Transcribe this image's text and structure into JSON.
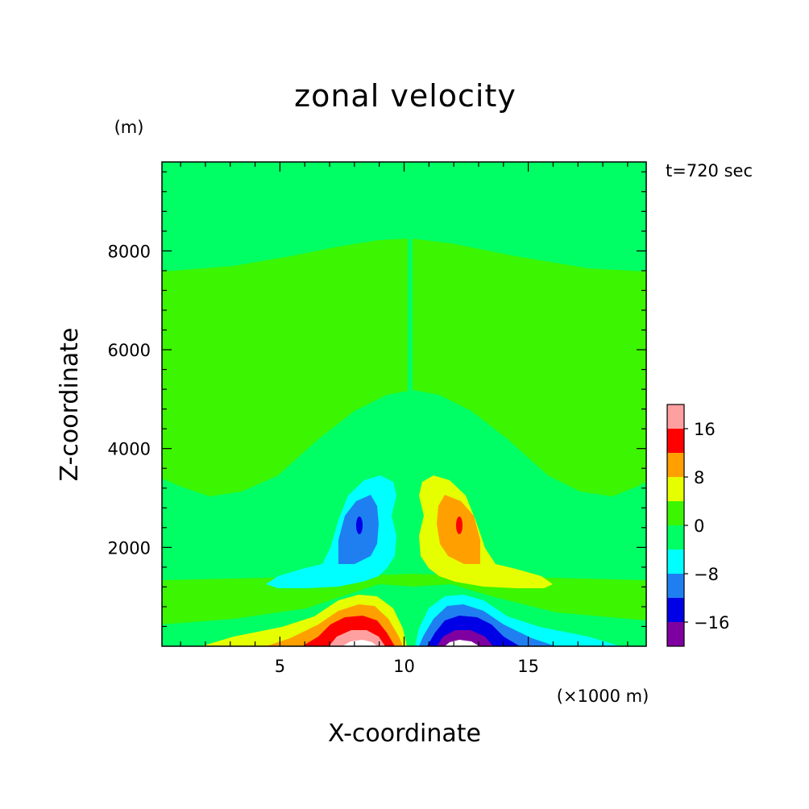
{
  "chart_data": {
    "type": "heatmap",
    "title": "zonal velocity",
    "time_label": "t=720 sec",
    "xlabel": "X-coordinate",
    "ylabel": "Z-coordinate",
    "x_unit": "(×1000 m)",
    "y_unit": "(m)",
    "xlim": [
      0.25,
      19.75
    ],
    "ylim": [
      0,
      9800
    ],
    "x_ticks": [
      5,
      10,
      15
    ],
    "x_tick_labels": [
      "5",
      "10",
      "15"
    ],
    "y_ticks": [
      2000,
      4000,
      6000,
      8000
    ],
    "y_tick_labels": [
      "2000",
      "4000",
      "6000",
      "8000"
    ],
    "colorbar": {
      "levels": [
        -20,
        -16,
        -12,
        -8,
        -4,
        0,
        4,
        8,
        12,
        16,
        20
      ],
      "colors": [
        "#7f00a0",
        "#0000e6",
        "#1f7ff0",
        "#00ffff",
        "#00ff64",
        "#3cf500",
        "#e6ff00",
        "#ffa000",
        "#ff0000",
        "#ffa0a0"
      ],
      "tick_values": [
        -16,
        -8,
        0,
        8,
        16
      ],
      "tick_labels": [
        "−16",
        "−8",
        "0",
        "8",
        "16"
      ]
    }
  }
}
